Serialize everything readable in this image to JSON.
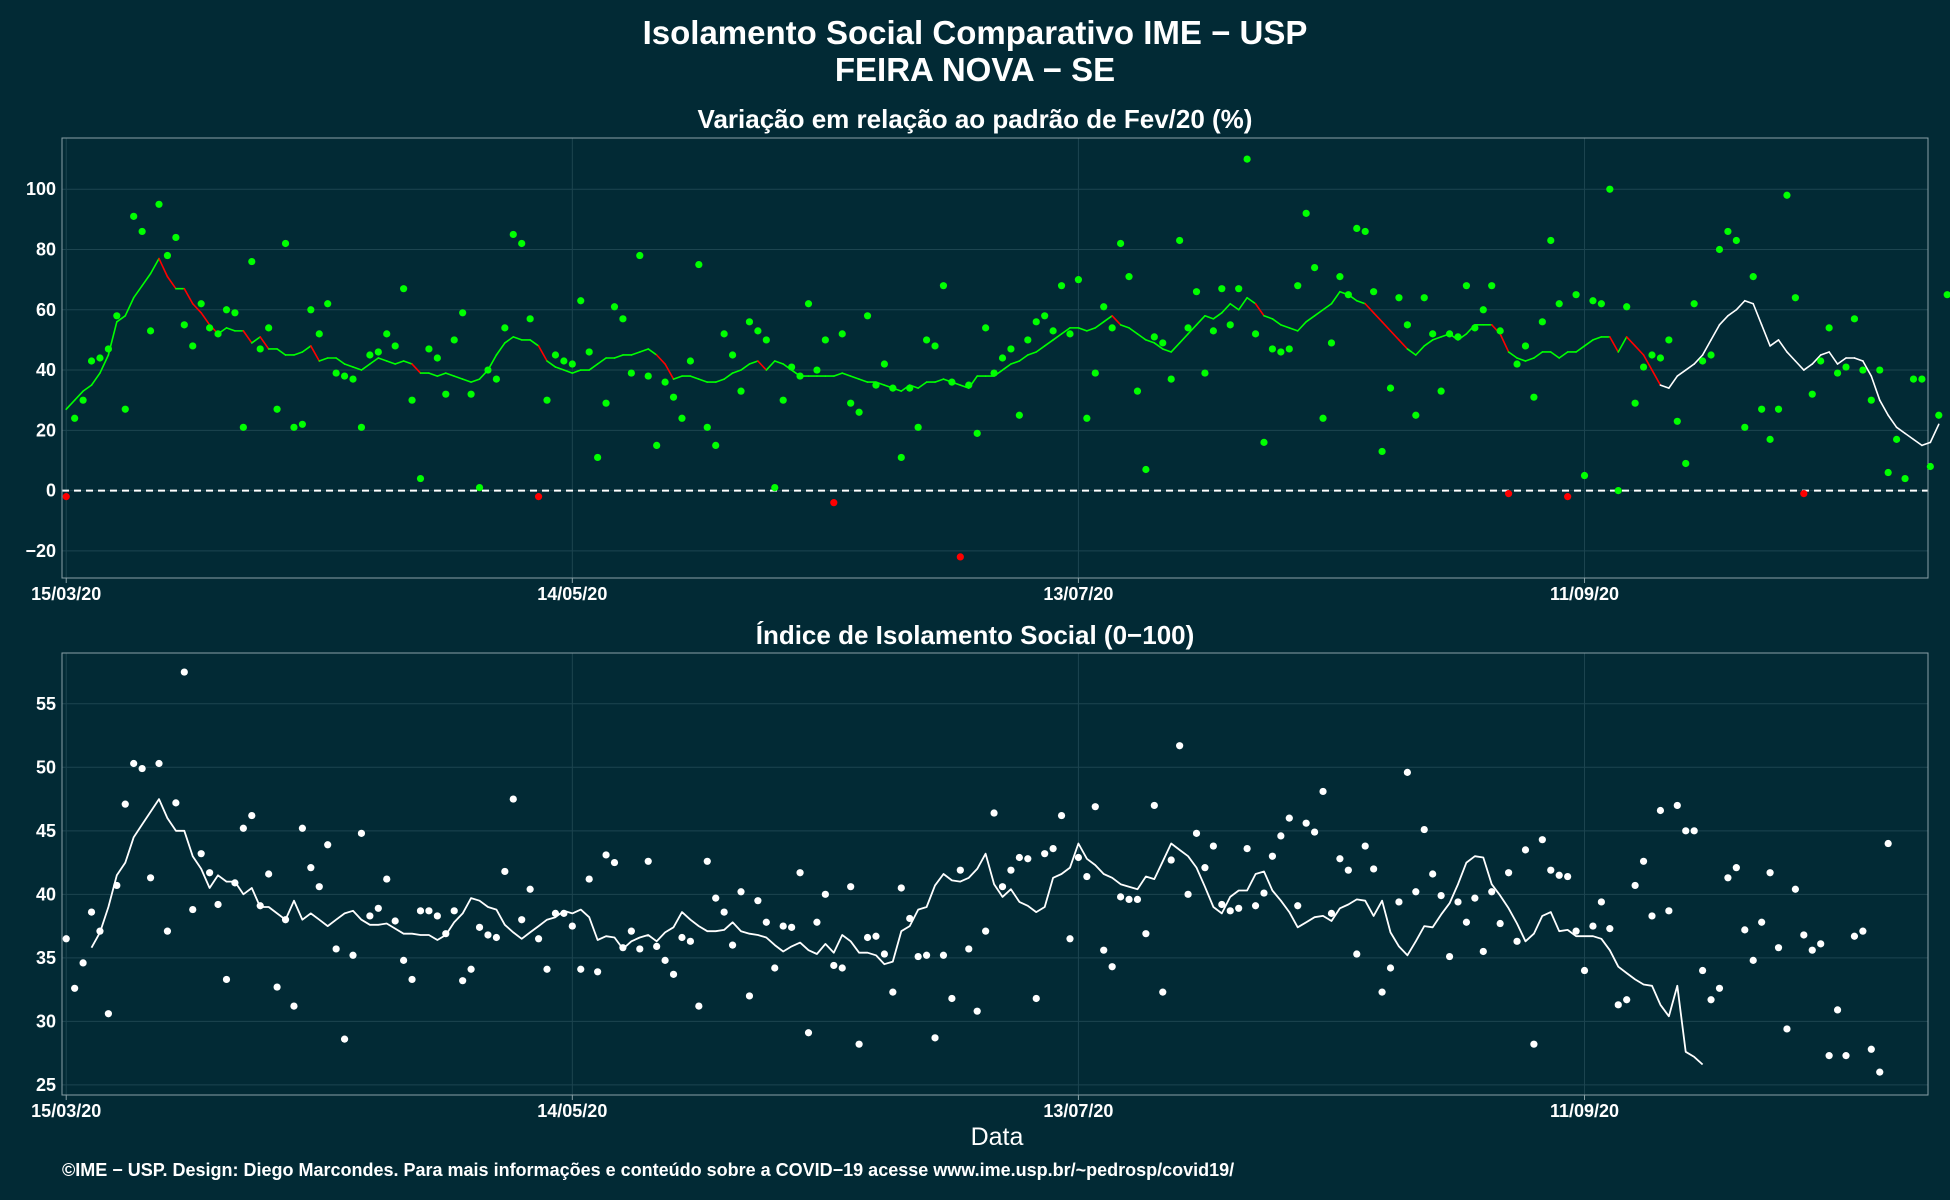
{
  "title_line1": "Isolamento Social Comparativo IME − USP",
  "title_line2": "FEIRA NOVA − SE",
  "xlabel": "Data",
  "footer": "©IME − USP. Design: Diego Marcondes. Para mais informações e conteúdo sobre a COVID−19 acesse www.ime.usp.br/~pedrosp/covid19/",
  "colors": {
    "background": "#022a35",
    "positive": "#00ff00",
    "negative": "#ff0000",
    "index": "#ffffff",
    "grid": "#1d4550",
    "panel_border": "#8aa0a6"
  },
  "chart_data": [
    {
      "type": "scatter",
      "subtitle": "Variação em relação ao padrão de Fev/20 (%)",
      "x_start_date": "2020-03-15",
      "x_tick_labels": [
        "15/03/20",
        "14/05/20",
        "13/07/20",
        "11/09/20"
      ],
      "ylim": [
        -29,
        117
      ],
      "y_ticks": [
        -20,
        0,
        20,
        40,
        60,
        80,
        100
      ],
      "reference_line": 0,
      "grid": true,
      "values": [
        -2,
        24,
        30,
        43,
        44,
        47,
        58,
        27,
        91,
        86,
        53,
        95,
        78,
        84,
        55,
        48,
        62,
        54,
        52,
        60,
        59,
        21,
        76,
        47,
        54,
        27,
        82,
        21,
        22,
        60,
        52,
        62,
        39,
        38,
        37,
        21,
        45,
        46,
        52,
        48,
        67,
        30,
        4,
        47,
        44,
        32,
        50,
        59,
        32,
        1,
        40,
        37,
        54,
        85,
        82,
        57,
        -2,
        30,
        45,
        43,
        42,
        63,
        46,
        11,
        29,
        61,
        57,
        39,
        78,
        38,
        15,
        36,
        31,
        24,
        43,
        75,
        21,
        15,
        52,
        45,
        33,
        56,
        53,
        50,
        1,
        30,
        41,
        38,
        62,
        40,
        50,
        -4,
        52,
        29,
        26,
        58,
        35,
        42,
        34,
        11,
        34,
        21,
        50,
        48,
        68,
        36,
        -22,
        35,
        19,
        54,
        39,
        44,
        47,
        25,
        50,
        56,
        58,
        53,
        68,
        52,
        70,
        24,
        39,
        61,
        54,
        82,
        71,
        33,
        7,
        51,
        49,
        37,
        83,
        54,
        66,
        39,
        53,
        67,
        55,
        67,
        110,
        52,
        16,
        47,
        46,
        47,
        68,
        92,
        74,
        24,
        49,
        71,
        65,
        87,
        86,
        66,
        13,
        34,
        64,
        55,
        25,
        64,
        52,
        33,
        52,
        51,
        68,
        54,
        60,
        68,
        53,
        -1,
        42,
        48,
        31,
        56,
        83,
        62,
        -2,
        65,
        5,
        63,
        62,
        100,
        0,
        61,
        29,
        41,
        45,
        44,
        50,
        23,
        9,
        62,
        43,
        45,
        80,
        86,
        83,
        21,
        71,
        27,
        17,
        27,
        98,
        64,
        -1,
        32,
        43,
        54,
        39,
        41,
        57,
        40,
        30,
        40,
        6,
        17,
        4,
        37,
        37,
        8,
        25,
        65
      ],
      "trend": [
        27,
        30,
        33,
        35,
        39,
        45,
        56,
        58,
        64,
        68,
        72,
        77,
        71,
        67,
        67,
        62,
        59,
        55,
        52,
        54,
        53,
        53,
        49,
        51,
        47,
        47,
        45,
        45,
        46,
        48,
        43,
        44,
        44,
        42,
        41,
        40,
        42,
        44,
        43,
        42,
        43,
        42,
        39,
        39,
        38,
        39,
        38,
        37,
        36,
        37,
        40,
        45,
        49,
        51,
        50,
        50,
        48,
        43,
        41,
        40,
        39,
        40,
        40,
        42,
        44,
        44,
        45,
        45,
        46,
        47,
        45,
        42,
        37,
        38,
        38,
        37,
        36,
        36,
        37,
        39,
        40,
        42,
        43,
        40,
        43,
        42,
        40,
        38,
        38,
        38,
        38,
        38,
        39,
        38,
        37,
        36,
        36,
        35,
        34,
        33,
        35,
        34,
        36,
        36,
        37,
        36,
        35,
        34,
        38,
        38,
        38,
        40,
        42,
        43,
        45,
        46,
        48,
        50,
        52,
        54,
        54,
        53,
        54,
        56,
        58,
        55,
        54,
        52,
        50,
        49,
        47,
        46,
        49,
        52,
        55,
        58,
        57,
        59,
        62,
        60,
        64,
        62,
        58,
        57,
        55,
        54,
        53,
        56,
        58,
        60,
        62,
        66,
        65,
        63,
        62,
        59,
        56,
        53,
        50,
        47,
        45,
        48,
        50,
        51,
        52,
        50,
        52,
        55,
        55,
        55,
        52,
        46,
        44,
        43,
        44,
        46,
        46,
        44,
        46,
        46,
        48,
        50,
        51,
        51,
        46,
        51,
        48,
        45,
        40,
        35,
        34,
        38,
        40,
        42,
        45,
        50,
        55,
        58,
        60,
        63,
        62,
        55,
        48,
        50,
        46,
        43,
        40,
        42,
        45,
        46,
        42,
        44,
        44,
        43,
        38,
        30,
        25,
        21,
        19,
        17,
        15,
        16,
        22
      ],
      "trend_white_from": 189
    },
    {
      "type": "scatter",
      "subtitle": "Índice de Isolamento Social (0−100)",
      "x_start_date": "2020-03-15",
      "x_tick_labels": [
        "15/03/20",
        "14/05/20",
        "13/07/20",
        "11/09/20"
      ],
      "ylim": [
        24.2,
        59
      ],
      "y_ticks": [
        25,
        30,
        35,
        40,
        45,
        50,
        55
      ],
      "grid": true,
      "values": [
        36.5,
        32.6,
        34.6,
        38.6,
        37.1,
        30.6,
        40.7,
        47.1,
        50.3,
        49.9,
        41.3,
        50.3,
        37.1,
        47.2,
        57.5,
        38.8,
        43.2,
        41.7,
        39.2,
        33.3,
        40.9,
        45.2,
        46.2,
        39.1,
        41.6,
        32.7,
        38,
        31.2,
        45.2,
        42.1,
        40.6,
        43.9,
        35.7,
        28.6,
        35.2,
        44.8,
        38.3,
        38.9,
        41.2,
        37.9,
        34.8,
        33.3,
        38.7,
        38.7,
        38.3,
        36.9,
        38.7,
        33.2,
        34.1,
        37.4,
        36.8,
        36.6,
        41.8,
        47.5,
        38,
        40.4,
        36.5,
        34.1,
        38.5,
        38.5,
        37.5,
        34.1,
        41.2,
        33.9,
        43.1,
        42.5,
        35.8,
        37.1,
        35.7,
        42.6,
        35.9,
        34.8,
        33.7,
        36.6,
        36.3,
        31.2,
        42.6,
        39.7,
        38.6,
        36,
        40.2,
        32,
        39.5,
        37.8,
        34.2,
        37.5,
        37.4,
        41.7,
        29.1,
        37.8,
        40,
        34.4,
        34.2,
        40.6,
        28.2,
        36.6,
        36.7,
        35.3,
        32.3,
        40.5,
        38.1,
        35.1,
        35.2,
        28.7,
        35.2,
        31.8,
        41.9,
        35.7,
        30.8,
        37.1,
        46.4,
        40.6,
        41.9,
        42.9,
        42.8,
        31.8,
        43.2,
        43.6,
        46.2,
        36.5,
        42.9,
        41.4,
        46.9,
        35.6,
        34.3,
        39.8,
        39.6,
        39.6,
        36.9,
        47,
        32.3,
        42.7,
        51.7,
        40,
        44.8,
        42.1,
        43.8,
        39.2,
        38.7,
        38.9,
        43.6,
        39.1,
        40.1,
        43,
        44.6,
        46,
        39.1,
        45.6,
        44.9,
        48.1,
        38.5,
        42.8,
        41.9,
        35.3,
        43.8,
        42,
        32.3,
        34.2,
        39.4,
        49.6,
        40.2,
        45.1,
        41.6,
        39.9,
        35.1,
        39.4,
        37.8,
        39.7,
        35.5,
        40.2,
        37.7,
        41.7,
        36.3,
        43.5,
        28.2,
        44.3,
        41.9,
        41.5,
        41.4,
        37.1,
        34,
        37.5,
        39.4,
        37.3,
        31.3,
        31.7,
        40.7,
        42.6,
        38.3,
        46.6,
        38.7,
        47,
        45,
        45,
        34,
        31.7,
        32.6,
        41.3,
        42.1,
        37.2,
        34.8,
        37.8,
        41.7,
        35.8,
        29.4,
        40.4,
        36.8,
        35.6,
        36.1,
        27.3,
        30.9,
        27.3,
        36.7,
        37.1,
        27.8,
        26,
        44
      ],
      "trend": [
        35.8,
        37,
        39,
        41.5,
        42.5,
        44.5,
        45.5,
        46.5,
        47.5,
        46,
        45,
        45,
        43,
        42,
        40.5,
        41.5,
        41,
        41,
        40,
        40.5,
        39,
        39,
        38.5,
        38,
        39.5,
        38,
        38.5,
        38,
        37.5,
        38,
        38.5,
        38.7,
        38,
        37.6,
        37.6,
        37.7,
        37.3,
        36.9,
        36.9,
        36.8,
        36.8,
        36.4,
        36.8,
        37.8,
        38.5,
        39.7,
        39.5,
        39,
        38.8,
        37.6,
        37,
        36.5,
        37,
        37.5,
        38,
        38.2,
        38.7,
        38.5,
        38.8,
        38.2,
        36.4,
        36.7,
        36.6,
        35.7,
        36.3,
        36.6,
        36.8,
        36.3,
        37,
        37.4,
        38.6,
        38,
        37.5,
        37.1,
        37.1,
        37.2,
        37.8,
        37.1,
        36.9,
        36.8,
        36.6,
        36,
        35.5,
        35.9,
        36.2,
        35.6,
        35.3,
        36.1,
        35.4,
        36.8,
        36.3,
        35.4,
        35.4,
        35.2,
        34.5,
        34.7,
        37.1,
        37.5,
        38.8,
        39,
        40.7,
        41.6,
        41.1,
        41,
        41.3,
        42,
        43.2,
        40.8,
        39.8,
        40.4,
        39.4,
        39.1,
        38.6,
        39,
        41.3,
        41.6,
        42.1,
        44,
        42.8,
        42.3,
        41.6,
        41.3,
        40.8,
        40.6,
        40.4,
        41.4,
        41.2,
        42.6,
        44,
        43.5,
        43,
        42.1,
        40.6,
        39,
        38.5,
        39.8,
        40.3,
        40.3,
        41.6,
        41.8,
        40.3,
        39.5,
        38.6,
        37.4,
        37.8,
        38.2,
        38.3,
        37.9,
        38.9,
        39.2,
        39.6,
        39.5,
        38.3,
        39.5,
        37,
        35.9,
        35.2,
        36.3,
        37.5,
        37.4,
        38.4,
        39.3,
        40.8,
        42.5,
        43,
        42.9,
        40.8,
        39.9,
        38.9,
        37.7,
        36.3,
        36.9,
        38.3,
        38.6,
        37.1,
        37.2,
        36.7,
        36.7,
        36.7,
        36.5,
        35.6,
        34.3,
        33.8,
        33.3,
        32.9,
        32.8,
        31.3,
        30.4,
        32.8,
        27.6,
        27.2,
        26.6
      ],
      "trend_start_index": 3
    }
  ]
}
